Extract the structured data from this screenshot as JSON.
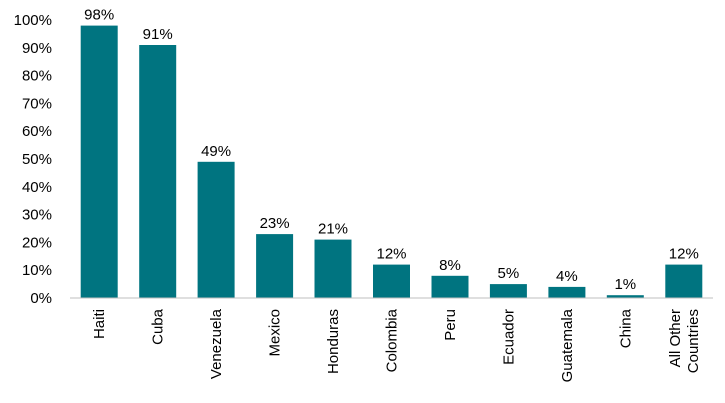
{
  "chart_data": {
    "type": "bar",
    "categories": [
      "Haiti",
      "Cuba",
      "Venezuela",
      "Mexico",
      "Honduras",
      "Colombia",
      "Peru",
      "Ecuador",
      "Guatemala",
      "China",
      "All Other Countries"
    ],
    "category_lines": [
      [
        "Haiti"
      ],
      [
        "Cuba"
      ],
      [
        "Venezuela"
      ],
      [
        "Mexico"
      ],
      [
        "Honduras"
      ],
      [
        "Colombia"
      ],
      [
        "Peru"
      ],
      [
        "Ecuador"
      ],
      [
        "Guatemala"
      ],
      [
        "China"
      ],
      [
        "All Other",
        "Countries"
      ]
    ],
    "values": [
      98,
      91,
      49,
      23,
      21,
      12,
      8,
      5,
      4,
      1,
      12
    ],
    "data_labels": [
      "98%",
      "91%",
      "49%",
      "23%",
      "21%",
      "12%",
      "8%",
      "5%",
      "4%",
      "1%",
      "12%"
    ],
    "yticks": [
      0,
      10,
      20,
      30,
      40,
      50,
      60,
      70,
      80,
      90,
      100
    ],
    "ytick_labels": [
      "0%",
      "10%",
      "20%",
      "30%",
      "40%",
      "50%",
      "60%",
      "70%",
      "80%",
      "90%",
      "100%"
    ],
    "ylim": [
      0,
      100
    ],
    "grid": false,
    "bar_color": "#007480",
    "axis_color": "#bfbfbf"
  }
}
